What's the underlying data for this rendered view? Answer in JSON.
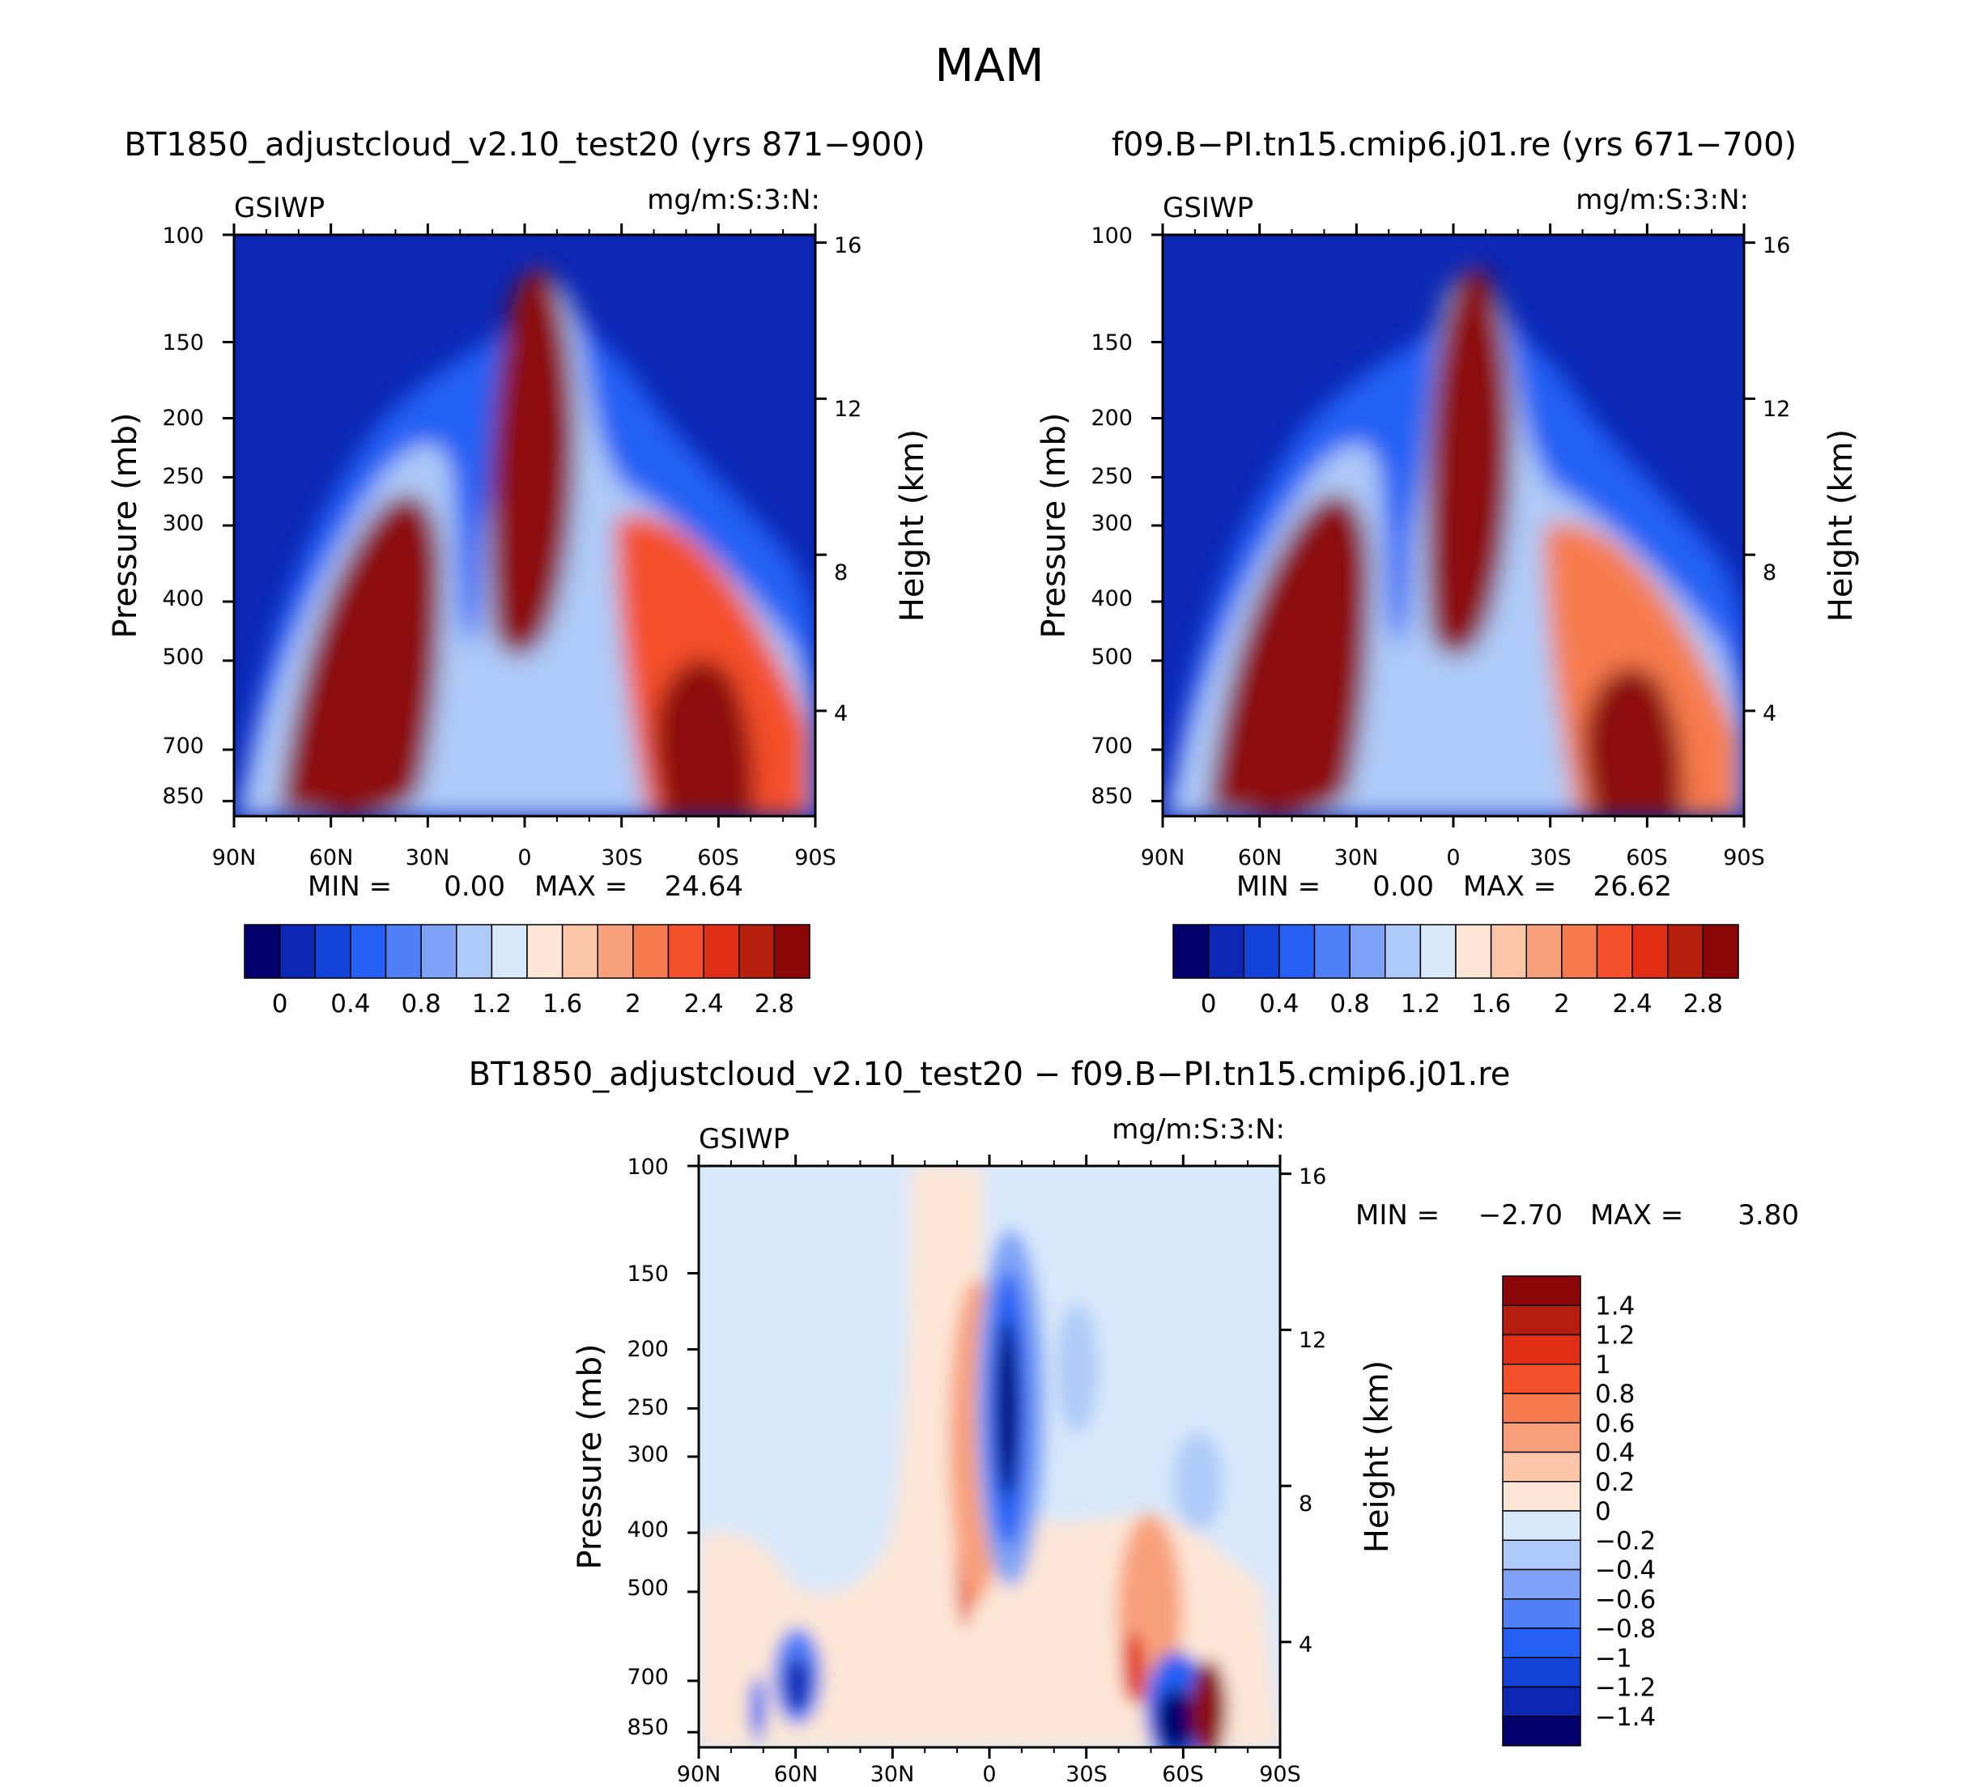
{
  "chart_data": [
    {
      "type": "heatmap",
      "id": "p1",
      "title": "BT1850_adjustcloud_v2.10_test20 (yrs 871-900)",
      "left_label": "GSIWP",
      "right_label": "mg/m:S:3:N:",
      "ylabel": "Pressure (mb)",
      "ylabel_right": "Height (km)",
      "xticks": [
        "90N",
        "60N",
        "30N",
        "0",
        "30S",
        "60S",
        "90S"
      ],
      "yticks": [
        "100",
        "150",
        "200",
        "250",
        "300",
        "400",
        "500",
        "700",
        "850"
      ],
      "yticks_right": [
        "16",
        "12",
        "8",
        "4"
      ],
      "stats": {
        "min_label": "MIN =",
        "min": "0.00",
        "max_label": "MAX =",
        "max": "24.64"
      },
      "colorbar": {
        "orientation": "horizontal",
        "colors": [
          "#03006e",
          "#0b27b4",
          "#1242d8",
          "#2460f4",
          "#4f80f8",
          "#7ea3f6",
          "#aecaf8",
          "#d8e8fb",
          "#fde6d6",
          "#fbc6a8",
          "#f8a07c",
          "#f67b4e",
          "#f4502a",
          "#e02f14",
          "#b51d0c",
          "#8b0707"
        ],
        "tick_labels": [
          "0",
          "0.4",
          "0.8",
          "1.2",
          "1.6",
          "2",
          "2.4",
          "2.8"
        ]
      }
    },
    {
      "type": "heatmap",
      "id": "p2",
      "title": "f09.B-PI.tn15.cmip6.j01.re (yrs 671-700)",
      "left_label": "GSIWP",
      "right_label": "mg/m:S:3:N:",
      "ylabel": "Pressure (mb)",
      "ylabel_right": "Height (km)",
      "xticks": [
        "90N",
        "60N",
        "30N",
        "0",
        "30S",
        "60S",
        "90S"
      ],
      "yticks": [
        "100",
        "150",
        "200",
        "250",
        "300",
        "400",
        "500",
        "700",
        "850"
      ],
      "yticks_right": [
        "16",
        "12",
        "8",
        "4"
      ],
      "stats": {
        "min_label": "MIN =",
        "min": "0.00",
        "max_label": "MAX =",
        "max": "26.62"
      },
      "colorbar": {
        "orientation": "horizontal",
        "colors": [
          "#03006e",
          "#0b27b4",
          "#1242d8",
          "#2460f4",
          "#4f80f8",
          "#7ea3f6",
          "#aecaf8",
          "#d8e8fb",
          "#fde6d6",
          "#fbc6a8",
          "#f8a07c",
          "#f67b4e",
          "#f4502a",
          "#e02f14",
          "#b51d0c",
          "#8b0707"
        ],
        "tick_labels": [
          "0",
          "0.4",
          "0.8",
          "1.2",
          "1.6",
          "2",
          "2.4",
          "2.8"
        ]
      }
    },
    {
      "type": "heatmap",
      "id": "p3",
      "title": "BT1850_adjustcloud_v2.10_test20 - f09.B-PI.tn15.cmip6.j01.re",
      "left_label": "GSIWP",
      "right_label": "mg/m:S:3:N:",
      "ylabel": "Pressure (mb)",
      "ylabel_right": "Height (km)",
      "xticks": [
        "90N",
        "60N",
        "30N",
        "0",
        "30S",
        "60S",
        "90S"
      ],
      "yticks": [
        "100",
        "150",
        "200",
        "250",
        "300",
        "400",
        "500",
        "700",
        "850"
      ],
      "yticks_right": [
        "16",
        "12",
        "8",
        "4"
      ],
      "stats": {
        "min_label": "MIN =",
        "min": "-2.70",
        "max_label": "MAX =",
        "max": "3.80"
      },
      "colorbar": {
        "orientation": "vertical",
        "colors": [
          "#8b0707",
          "#b51d0c",
          "#e02f14",
          "#f4502a",
          "#f67b4e",
          "#f8a07c",
          "#fbc6a8",
          "#fde6d6",
          "#d8e8fb",
          "#aecaf8",
          "#7ea3f6",
          "#4f80f8",
          "#2460f4",
          "#1242d8",
          "#0b27b4",
          "#03006e"
        ],
        "tick_labels": [
          "1.4",
          "1.2",
          "1",
          "0.8",
          "0.6",
          "0.4",
          "0.2",
          "0",
          "-0.2",
          "-0.4",
          "-0.6",
          "-0.8",
          "-1",
          "-1.2",
          "-1.4"
        ]
      }
    }
  ],
  "page": {
    "season_title": "MAM"
  }
}
